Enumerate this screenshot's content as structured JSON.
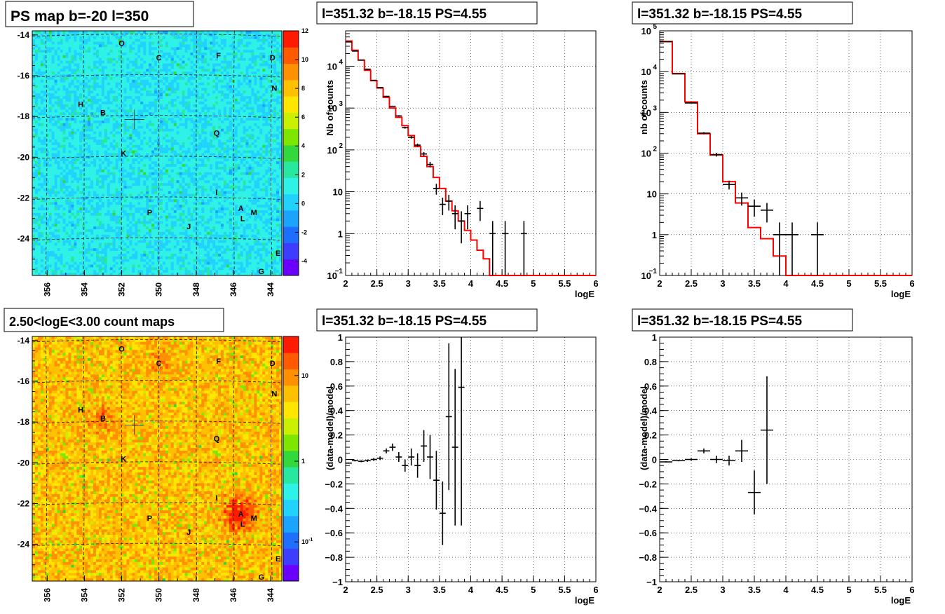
{
  "chart_data": [
    {
      "type": "heatmap",
      "title": "PS map b=-20 l=350",
      "x_ticks": [
        "356",
        "354",
        "352",
        "350",
        "348",
        "346",
        "344"
      ],
      "y_ticks": [
        "-14",
        "-16",
        "-18",
        "-20",
        "-22",
        "-24"
      ],
      "xlim": [
        356.8,
        343.4
      ],
      "ylim": [
        -25.8,
        -13.8
      ],
      "colorbar_ticks": [
        "12",
        "10",
        "8",
        "6",
        "4",
        "2",
        "0",
        "-2",
        "-4"
      ],
      "colorbar_range": [
        -5,
        12
      ],
      "colorscale": "linear",
      "marker": {
        "l": 351.32,
        "b": -18.15
      },
      "sources": [
        {
          "name": "O",
          "l": 352.0,
          "b": -14.4
        },
        {
          "name": "C",
          "l": 350.0,
          "b": -15.1
        },
        {
          "name": "F",
          "l": 346.8,
          "b": -15.0
        },
        {
          "name": "D",
          "l": 343.9,
          "b": -15.1
        },
        {
          "name": "N",
          "l": 343.8,
          "b": -16.6
        },
        {
          "name": "H",
          "l": 354.2,
          "b": -17.4
        },
        {
          "name": "B",
          "l": 353.0,
          "b": -17.8
        },
        {
          "name": "Q",
          "l": 346.9,
          "b": -18.8
        },
        {
          "name": "K",
          "l": 351.9,
          "b": -19.8
        },
        {
          "name": "I",
          "l": 346.9,
          "b": -21.7
        },
        {
          "name": "A",
          "l": 345.6,
          "b": -22.5
        },
        {
          "name": "M",
          "l": 344.9,
          "b": -22.7
        },
        {
          "name": "L",
          "l": 345.5,
          "b": -23.0
        },
        {
          "name": "P",
          "l": 350.5,
          "b": -22.7
        },
        {
          "name": "J",
          "l": 348.4,
          "b": -23.4
        },
        {
          "name": "E",
          "l": 343.6,
          "b": -24.7
        },
        {
          "name": "G",
          "l": 344.5,
          "b": -25.6
        }
      ]
    },
    {
      "type": "line",
      "title": "l=351.32 b=-18.15 PS=4.55",
      "xlabel": "logE",
      "ylabel": "Nb of counts",
      "xlim": [
        2,
        6
      ],
      "ylim": [
        0.1,
        70000
      ],
      "yscale": "log",
      "x_ticks": [
        "2",
        "2.5",
        "3",
        "3.5",
        "4",
        "4.5",
        "5",
        "5.5",
        "6"
      ],
      "y_ticks": [
        {
          "v": 0.1,
          "label": "10",
          "sup": "−1"
        },
        {
          "v": 1,
          "label": "1",
          "sup": ""
        },
        {
          "v": 10,
          "label": "10",
          "sup": ""
        },
        {
          "v": 100,
          "label": "10",
          "sup": "2"
        },
        {
          "v": 1000,
          "label": "10",
          "sup": "3"
        },
        {
          "v": 10000,
          "label": "10",
          "sup": "4"
        }
      ],
      "bin_width": 0.1,
      "model": [
        40000,
        24000,
        14000,
        8000,
        4500,
        3000,
        1800,
        1000,
        600,
        380,
        220,
        120,
        70,
        40,
        22,
        12,
        6,
        3.5,
        2,
        1.2,
        0.7,
        0.4,
        0.25,
        0.1
      ],
      "model_start": 2.0,
      "data": [
        {
          "x": 2.05,
          "y": 38000
        },
        {
          "x": 2.15,
          "y": 23000
        },
        {
          "x": 2.25,
          "y": 14000
        },
        {
          "x": 2.35,
          "y": 8500
        },
        {
          "x": 2.45,
          "y": 4600
        },
        {
          "x": 2.55,
          "y": 3100
        },
        {
          "x": 2.65,
          "y": 1900
        },
        {
          "x": 2.75,
          "y": 1100
        },
        {
          "x": 2.85,
          "y": 650
        },
        {
          "x": 2.95,
          "y": 340
        },
        {
          "x": 3.05,
          "y": 200
        },
        {
          "x": 3.15,
          "y": 130
        },
        {
          "x": 3.25,
          "y": 80
        },
        {
          "x": 3.35,
          "y": 45
        },
        {
          "x": 3.45,
          "y": 12
        },
        {
          "x": 3.55,
          "y": 5
        },
        {
          "x": 3.65,
          "y": 6
        },
        {
          "x": 3.75,
          "y": 3
        },
        {
          "x": 3.85,
          "y": 2
        },
        {
          "x": 3.95,
          "y": 3
        },
        {
          "x": 4.15,
          "y": 4
        },
        {
          "x": 4.35,
          "y": 1
        },
        {
          "x": 4.55,
          "y": 1
        },
        {
          "x": 4.85,
          "y": 1
        }
      ]
    },
    {
      "type": "line",
      "title": "l=351.32 b=-18.15 PS=4.55",
      "xlabel": "logE",
      "ylabel": "nb of counts",
      "xlim": [
        2,
        6
      ],
      "ylim": [
        0.1,
        100000
      ],
      "yscale": "log",
      "x_ticks": [
        "2",
        "2.5",
        "3",
        "3.5",
        "4",
        "4.5",
        "5",
        "5.5",
        "6"
      ],
      "y_ticks": [
        {
          "v": 0.1,
          "label": "10",
          "sup": "−1"
        },
        {
          "v": 1,
          "label": "1",
          "sup": ""
        },
        {
          "v": 10,
          "label": "10",
          "sup": ""
        },
        {
          "v": 100,
          "label": "10",
          "sup": "2"
        },
        {
          "v": 1000,
          "label": "10",
          "sup": "3"
        },
        {
          "v": 10000,
          "label": "10",
          "sup": "4"
        },
        {
          "v": 100000,
          "label": "10",
          "sup": "5"
        }
      ],
      "bin_width": 0.2,
      "model": [
        55000,
        9000,
        1800,
        300,
        90,
        20,
        6,
        1.5,
        0.8,
        0.3,
        0.1,
        0.1
      ],
      "model_start": 2.0,
      "data": [
        {
          "x": 2.1,
          "y": 54000
        },
        {
          "x": 2.3,
          "y": 8800
        },
        {
          "x": 2.5,
          "y": 1700
        },
        {
          "x": 2.7,
          "y": 310
        },
        {
          "x": 2.9,
          "y": 92
        },
        {
          "x": 3.1,
          "y": 17
        },
        {
          "x": 3.3,
          "y": 8
        },
        {
          "x": 3.5,
          "y": 5
        },
        {
          "x": 3.7,
          "y": 4
        },
        {
          "x": 3.9,
          "y": 1
        },
        {
          "x": 4.1,
          "y": 1
        },
        {
          "x": 4.5,
          "y": 1
        }
      ]
    },
    {
      "type": "heatmap",
      "title": "2.50<logE<3.00 count maps",
      "x_ticks": [
        "356",
        "354",
        "352",
        "350",
        "348",
        "346",
        "344"
      ],
      "y_ticks": [
        "-14",
        "-16",
        "-18",
        "-20",
        "-22",
        "-24"
      ],
      "xlim": [
        356.8,
        343.4
      ],
      "ylim": [
        -25.8,
        -13.8
      ],
      "colorbar_ticks": [
        "10",
        "1",
        "10-1"
      ],
      "colorscale": "log",
      "marker": {
        "l": 351.32,
        "b": -18.15
      },
      "sources": [
        {
          "name": "O",
          "l": 352.0,
          "b": -14.4
        },
        {
          "name": "C",
          "l": 350.0,
          "b": -15.1
        },
        {
          "name": "F",
          "l": 346.8,
          "b": -15.0
        },
        {
          "name": "D",
          "l": 343.9,
          "b": -15.1
        },
        {
          "name": "N",
          "l": 343.8,
          "b": -16.6
        },
        {
          "name": "H",
          "l": 354.2,
          "b": -17.4
        },
        {
          "name": "B",
          "l": 353.0,
          "b": -17.8
        },
        {
          "name": "Q",
          "l": 346.9,
          "b": -18.8
        },
        {
          "name": "K",
          "l": 351.9,
          "b": -19.8
        },
        {
          "name": "I",
          "l": 346.9,
          "b": -21.7
        },
        {
          "name": "A",
          "l": 345.6,
          "b": -22.5
        },
        {
          "name": "M",
          "l": 344.9,
          "b": -22.7
        },
        {
          "name": "L",
          "l": 345.5,
          "b": -23.0
        },
        {
          "name": "P",
          "l": 350.5,
          "b": -22.7
        },
        {
          "name": "J",
          "l": 348.4,
          "b": -23.4
        },
        {
          "name": "E",
          "l": 343.6,
          "b": -24.7
        },
        {
          "name": "G",
          "l": 344.5,
          "b": -25.6
        }
      ]
    },
    {
      "type": "scatter",
      "title": "l=351.32 b=-18.15 PS=4.55",
      "xlabel": "logE",
      "ylabel": "(data-model)/model",
      "xlim": [
        2,
        6
      ],
      "ylim": [
        -1,
        1
      ],
      "x_ticks": [
        "2",
        "2.5",
        "3",
        "3.5",
        "4",
        "4.5",
        "5",
        "5.5",
        "6"
      ],
      "y_ticks": [
        "−1",
        "−0.8",
        "−0.6",
        "−0.4",
        "−0.2",
        "0",
        "0.2",
        "0.4",
        "0.6",
        "0.8",
        "1"
      ],
      "bin_width": 0.1,
      "data": [
        {
          "x": 2.05,
          "y": -0.03,
          "err": 0.005
        },
        {
          "x": 2.15,
          "y": -0.01,
          "err": 0.006
        },
        {
          "x": 2.25,
          "y": -0.015,
          "err": 0.008
        },
        {
          "x": 2.35,
          "y": -0.01,
          "err": 0.01
        },
        {
          "x": 2.45,
          "y": 0.0,
          "err": 0.012
        },
        {
          "x": 2.55,
          "y": 0.01,
          "err": 0.015
        },
        {
          "x": 2.65,
          "y": 0.07,
          "err": 0.02
        },
        {
          "x": 2.75,
          "y": 0.1,
          "err": 0.03
        },
        {
          "x": 2.85,
          "y": 0.02,
          "err": 0.04
        },
        {
          "x": 2.95,
          "y": -0.05,
          "err": 0.05
        },
        {
          "x": 3.05,
          "y": 0.02,
          "err": 0.07
        },
        {
          "x": 3.15,
          "y": -0.05,
          "err": 0.1
        },
        {
          "x": 3.25,
          "y": 0.11,
          "err": 0.13
        },
        {
          "x": 3.35,
          "y": 0.02,
          "err": 0.18
        },
        {
          "x": 3.45,
          "y": -0.17,
          "err": 0.24
        },
        {
          "x": 3.55,
          "y": -0.44,
          "err": 0.26
        },
        {
          "x": 3.65,
          "y": 0.35,
          "err": 0.6
        },
        {
          "x": 3.75,
          "y": 0.1,
          "err": 0.64
        },
        {
          "x": 3.85,
          "y": 0.59,
          "err": 1.13
        }
      ]
    },
    {
      "type": "scatter",
      "title": "l=351.32 b=-18.15 PS=4.55",
      "xlabel": "logE",
      "ylabel": "(data-model)/model",
      "xlim": [
        2,
        6
      ],
      "ylim": [
        -1,
        1
      ],
      "x_ticks": [
        "2",
        "2.5",
        "3",
        "3.5",
        "4",
        "4.5",
        "5",
        "5.5",
        "6"
      ],
      "y_ticks": [
        "−1",
        "−0.8",
        "−0.6",
        "−0.4",
        "−0.2",
        "0",
        "0.2",
        "0.4",
        "0.6",
        "0.8",
        "1"
      ],
      "bin_width": 0.2,
      "data": [
        {
          "x": 2.1,
          "y": -0.02,
          "err": 0.005
        },
        {
          "x": 2.3,
          "y": -0.01,
          "err": 0.006
        },
        {
          "x": 2.5,
          "y": 0.0,
          "err": 0.01
        },
        {
          "x": 2.7,
          "y": 0.07,
          "err": 0.02
        },
        {
          "x": 2.9,
          "y": 0.0,
          "err": 0.03
        },
        {
          "x": 3.1,
          "y": -0.01,
          "err": 0.04
        },
        {
          "x": 3.3,
          "y": 0.07,
          "err": 0.09
        },
        {
          "x": 3.5,
          "y": -0.27,
          "err": 0.18
        },
        {
          "x": 3.7,
          "y": 0.24,
          "err": 0.44
        }
      ]
    }
  ]
}
